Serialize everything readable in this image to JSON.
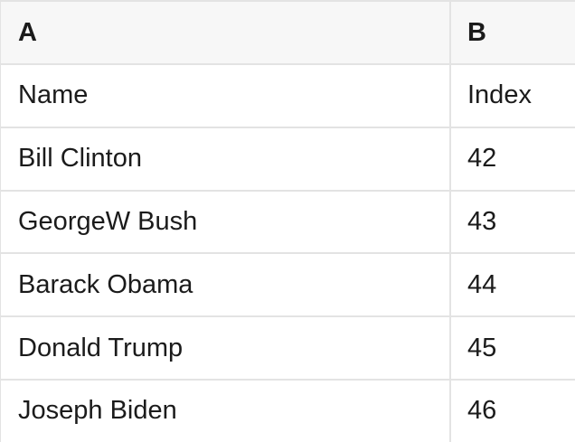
{
  "table": {
    "column_headers": [
      "A",
      "B"
    ],
    "rows": [
      {
        "a": "Name",
        "b": "Index"
      },
      {
        "a": "Bill Clinton",
        "b": "42"
      },
      {
        "a": "GeorgeW Bush",
        "b": "43"
      },
      {
        "a": "Barack Obama",
        "b": "44"
      },
      {
        "a": "Donald Trump",
        "b": "45"
      },
      {
        "a": "Joseph Biden",
        "b": "46"
      }
    ]
  },
  "colors": {
    "header_background": "#f7f7f7",
    "row_background": "#ffffff",
    "grid_line": "#e3e3e3",
    "text": "#1b1b1b"
  }
}
